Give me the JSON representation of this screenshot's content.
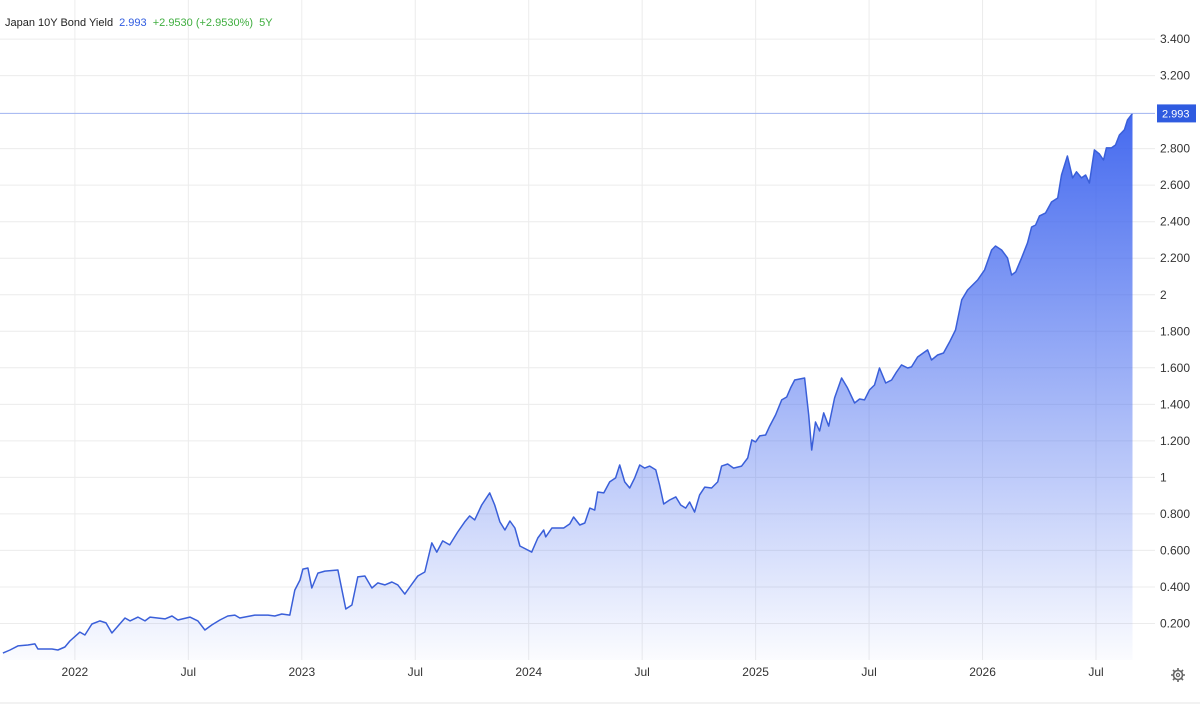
{
  "chart_data": {
    "type": "area",
    "title": "Japan 10Y Bond Yield",
    "last_value": 2.993,
    "change": "+2.9530 (+2.9530%)",
    "period": "5Y",
    "color": "#3a5fd9",
    "last_value_color": "#2f5be0",
    "change_color": "#3fae3f",
    "grid": true,
    "xlim": [
      2021.67,
      2026.76
    ],
    "ylim": [
      0,
      3.614
    ],
    "xticks": [
      2022,
      {
        "value": 2022.5,
        "label": "Jul"
      },
      2023,
      {
        "value": 2023.5,
        "label": "Jul"
      },
      2024,
      {
        "value": 2024.5,
        "label": "Jul"
      },
      2025,
      {
        "value": 2025.5,
        "label": "Jul"
      },
      2026,
      {
        "value": 2026.5,
        "label": "Jul"
      }
    ],
    "yticks": [
      {
        "value": 0.2,
        "label": "0.200"
      },
      {
        "value": 0.4,
        "label": "0.400"
      },
      {
        "value": 0.6,
        "label": "0.600"
      },
      {
        "value": 0.8,
        "label": "0.800"
      },
      1,
      {
        "value": 1.2,
        "label": "1.200"
      },
      {
        "value": 1.4,
        "label": "1.400"
      },
      {
        "value": 1.6,
        "label": "1.600"
      },
      {
        "value": 1.8,
        "label": "1.800"
      },
      2,
      {
        "value": 2.2,
        "label": "2.200"
      },
      {
        "value": 2.4,
        "label": "2.400"
      },
      {
        "value": 2.6,
        "label": "2.600"
      },
      {
        "value": 2.8,
        "label": "2.800"
      },
      {
        "value": 3.2,
        "label": "3.200"
      },
      {
        "value": 3.4,
        "label": "3.400"
      }
    ],
    "x": [
      2021.683,
      2021.714,
      2021.749,
      2021.793,
      2021.824,
      2021.837,
      2021.899,
      2021.925,
      2021.956,
      2021.978,
      2022.022,
      2022.044,
      2022.075,
      2022.11,
      2022.137,
      2022.163,
      2022.19,
      2022.221,
      2022.243,
      2022.278,
      2022.309,
      2022.331,
      2022.397,
      2022.428,
      2022.454,
      2022.507,
      2022.542,
      2022.573,
      2022.604,
      2022.639,
      2022.674,
      2022.705,
      2022.727,
      2022.793,
      2022.851,
      2022.881,
      2022.912,
      2022.947,
      2022.969,
      2022.992,
      2023.005,
      2023.027,
      2023.044,
      2023.071,
      2023.102,
      2023.159,
      2023.194,
      2023.221,
      2023.247,
      2023.278,
      2023.309,
      2023.335,
      2023.366,
      2023.397,
      2023.423,
      2023.454,
      2023.476,
      2023.511,
      2023.542,
      2023.573,
      2023.595,
      2023.621,
      2023.652,
      2023.687,
      2023.718,
      2023.74,
      2023.762,
      2023.793,
      2023.828,
      2023.85,
      2023.873,
      2023.895,
      2023.917,
      2023.939,
      2023.961,
      2024.013,
      2024.04,
      2024.066,
      2024.075,
      2024.102,
      2024.154,
      2024.181,
      2024.198,
      2024.225,
      2024.247,
      2024.269,
      2024.291,
      2024.304,
      2024.331,
      2024.357,
      2024.383,
      2024.401,
      2024.423,
      2024.445,
      2024.467,
      2024.489,
      2024.511,
      2024.533,
      2024.56,
      2024.577,
      2024.595,
      2024.621,
      2024.648,
      2024.67,
      2024.692,
      2024.709,
      2024.731,
      2024.753,
      2024.776,
      2024.806,
      2024.833,
      2024.85,
      2024.877,
      2024.903,
      2024.938,
      2024.965,
      2024.983,
      2025.0,
      2025.018,
      2025.044,
      2025.062,
      2025.088,
      2025.115,
      2025.137,
      2025.154,
      2025.172,
      2025.216,
      2025.234,
      2025.247,
      2025.264,
      2025.282,
      2025.3,
      2025.322,
      2025.348,
      2025.379,
      2025.405,
      2025.436,
      2025.458,
      2025.48,
      2025.502,
      2025.524,
      2025.546,
      2025.573,
      2025.599,
      2025.621,
      2025.643,
      2025.67,
      2025.687,
      2025.714,
      2025.758,
      2025.775,
      2025.802,
      2025.828,
      2025.855,
      2025.881,
      2025.908,
      2025.934,
      2025.978,
      2026.009,
      2026.04,
      2026.057,
      2026.084,
      2026.11,
      2026.128,
      2026.146,
      2026.172,
      2026.198,
      2026.216,
      2026.234,
      2026.251,
      2026.278,
      2026.304,
      2026.331,
      2026.348,
      2026.374,
      2026.397,
      2026.414,
      2026.436,
      2026.454,
      2026.471,
      2026.493,
      2026.515,
      2026.533,
      2026.546,
      2026.568,
      2026.586,
      2026.603,
      2026.625,
      2026.639,
      2026.661
    ],
    "values": [
      0.038,
      0.055,
      0.077,
      0.082,
      0.088,
      0.06,
      0.06,
      0.055,
      0.071,
      0.104,
      0.153,
      0.137,
      0.197,
      0.214,
      0.203,
      0.148,
      0.186,
      0.23,
      0.214,
      0.235,
      0.214,
      0.235,
      0.225,
      0.241,
      0.219,
      0.235,
      0.214,
      0.164,
      0.192,
      0.219,
      0.241,
      0.246,
      0.23,
      0.246,
      0.246,
      0.241,
      0.252,
      0.246,
      0.383,
      0.438,
      0.498,
      0.504,
      0.394,
      0.476,
      0.487,
      0.493,
      0.279,
      0.301,
      0.455,
      0.46,
      0.394,
      0.422,
      0.411,
      0.427,
      0.411,
      0.361,
      0.4,
      0.46,
      0.482,
      0.641,
      0.591,
      0.652,
      0.63,
      0.701,
      0.756,
      0.789,
      0.767,
      0.849,
      0.915,
      0.849,
      0.756,
      0.712,
      0.761,
      0.723,
      0.624,
      0.591,
      0.668,
      0.712,
      0.674,
      0.723,
      0.723,
      0.745,
      0.783,
      0.739,
      0.75,
      0.832,
      0.821,
      0.92,
      0.915,
      0.975,
      0.997,
      1.068,
      0.975,
      0.942,
      0.997,
      1.068,
      1.051,
      1.062,
      1.041,
      0.958,
      0.854,
      0.876,
      0.893,
      0.849,
      0.832,
      0.865,
      0.81,
      0.904,
      0.947,
      0.942,
      0.975,
      1.062,
      1.073,
      1.051,
      1.062,
      1.106,
      1.205,
      1.194,
      1.227,
      1.232,
      1.281,
      1.342,
      1.424,
      1.44,
      1.49,
      1.533,
      1.544,
      1.342,
      1.15,
      1.303,
      1.254,
      1.353,
      1.281,
      1.435,
      1.544,
      1.49,
      1.407,
      1.429,
      1.424,
      1.479,
      1.506,
      1.599,
      1.517,
      1.533,
      1.577,
      1.616,
      1.599,
      1.605,
      1.659,
      1.698,
      1.643,
      1.67,
      1.681,
      1.742,
      1.807,
      1.972,
      2.026,
      2.081,
      2.136,
      2.245,
      2.267,
      2.245,
      2.202,
      2.108,
      2.125,
      2.202,
      2.284,
      2.371,
      2.382,
      2.432,
      2.448,
      2.508,
      2.53,
      2.656,
      2.76,
      2.64,
      2.673,
      2.64,
      2.656,
      2.612,
      2.793,
      2.771,
      2.738,
      2.804,
      2.804,
      2.82,
      2.875,
      2.903,
      2.957,
      2.993
    ]
  }
}
